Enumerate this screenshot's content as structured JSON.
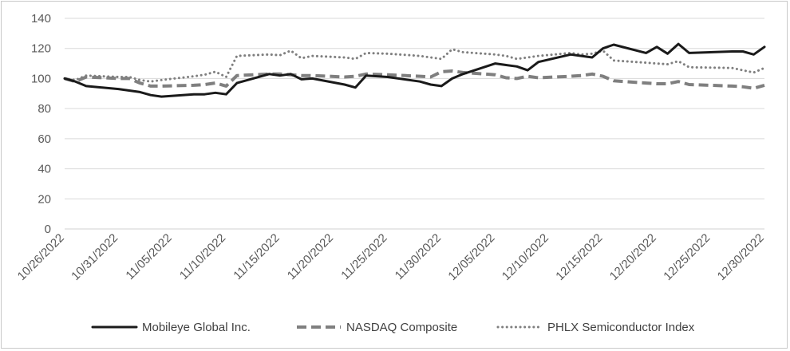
{
  "chart_data": {
    "type": "line",
    "title": "",
    "xlabel": "",
    "ylabel": "",
    "ylim": [
      0,
      140
    ],
    "yticks": [
      0,
      20,
      40,
      60,
      80,
      100,
      120,
      140
    ],
    "xtick_labels": [
      "10/26/2022",
      "10/31/2022",
      "11/05/2022",
      "11/10/2022",
      "11/15/2022",
      "11/20/2022",
      "11/25/2022",
      "11/30/2022",
      "12/05/2022",
      "12/10/2022",
      "12/15/2022",
      "12/20/2022",
      "12/25/2022",
      "12/30/2022"
    ],
    "grid": "horizontal",
    "legend_position": "bottom",
    "series": [
      {
        "name": "Mobileye Global Inc.",
        "style": "solid",
        "color": "#1a1a1a",
        "points": [
          [
            "10/26/2022",
            100
          ],
          [
            "10/27/2022",
            98
          ],
          [
            "10/28/2022",
            95
          ],
          [
            "10/31/2022",
            93
          ],
          [
            "11/01/2022",
            92
          ],
          [
            "11/02/2022",
            91
          ],
          [
            "11/03/2022",
            89
          ],
          [
            "11/04/2022",
            88
          ],
          [
            "11/07/2022",
            89.5
          ],
          [
            "11/08/2022",
            89.5
          ],
          [
            "11/09/2022",
            90.5
          ],
          [
            "11/10/2022",
            89.5
          ],
          [
            "11/11/2022",
            97
          ],
          [
            "11/14/2022",
            103
          ],
          [
            "11/15/2022",
            102
          ],
          [
            "11/16/2022",
            103
          ],
          [
            "11/17/2022",
            99.5
          ],
          [
            "11/18/2022",
            100
          ],
          [
            "11/21/2022",
            96
          ],
          [
            "11/22/2022",
            94
          ],
          [
            "11/23/2022",
            102
          ],
          [
            "11/25/2022",
            101
          ],
          [
            "11/28/2022",
            98
          ],
          [
            "11/29/2022",
            96
          ],
          [
            "11/30/2022",
            95
          ],
          [
            "12/01/2022",
            100
          ],
          [
            "12/02/2022",
            103
          ],
          [
            "12/05/2022",
            110
          ],
          [
            "12/06/2022",
            109
          ],
          [
            "12/07/2022",
            108
          ],
          [
            "12/08/2022",
            105.5
          ],
          [
            "12/09/2022",
            111
          ],
          [
            "12/12/2022",
            116
          ],
          [
            "12/13/2022",
            115
          ],
          [
            "12/14/2022",
            114
          ],
          [
            "12/15/2022",
            120
          ],
          [
            "12/16/2022",
            122.5
          ],
          [
            "12/19/2022",
            117
          ],
          [
            "12/20/2022",
            121
          ],
          [
            "12/21/2022",
            116.5
          ],
          [
            "12/22/2022",
            123
          ],
          [
            "12/23/2022",
            117
          ],
          [
            "12/27/2022",
            118
          ],
          [
            "12/28/2022",
            118
          ],
          [
            "12/29/2022",
            116
          ],
          [
            "12/30/2022",
            121
          ]
        ]
      },
      {
        "name": "NASDAQ Composite",
        "style": "dashed",
        "color": "#7f7f7f",
        "points": [
          [
            "10/26/2022",
            100
          ],
          [
            "10/27/2022",
            98
          ],
          [
            "10/28/2022",
            101
          ],
          [
            "10/31/2022",
            100
          ],
          [
            "11/01/2022",
            100
          ],
          [
            "11/02/2022",
            97
          ],
          [
            "11/03/2022",
            95
          ],
          [
            "11/04/2022",
            95
          ],
          [
            "11/07/2022",
            95.5
          ],
          [
            "11/08/2022",
            96
          ],
          [
            "11/09/2022",
            97
          ],
          [
            "11/10/2022",
            95
          ],
          [
            "11/11/2022",
            102
          ],
          [
            "11/14/2022",
            103
          ],
          [
            "11/15/2022",
            103
          ],
          [
            "11/16/2022",
            102.5
          ],
          [
            "11/17/2022",
            102
          ],
          [
            "11/18/2022",
            102
          ],
          [
            "11/21/2022",
            101
          ],
          [
            "11/22/2022",
            101.5
          ],
          [
            "11/23/2022",
            103
          ],
          [
            "11/25/2022",
            102.5
          ],
          [
            "11/28/2022",
            101.5
          ],
          [
            "11/29/2022",
            101
          ],
          [
            "11/30/2022",
            104.5
          ],
          [
            "12/01/2022",
            105
          ],
          [
            "12/02/2022",
            104
          ],
          [
            "12/05/2022",
            102.5
          ],
          [
            "12/06/2022",
            100.5
          ],
          [
            "12/07/2022",
            100
          ],
          [
            "12/08/2022",
            101.5
          ],
          [
            "12/09/2022",
            100.5
          ],
          [
            "12/12/2022",
            101.5
          ],
          [
            "12/13/2022",
            102
          ],
          [
            "12/14/2022",
            103
          ],
          [
            "12/15/2022",
            101.5
          ],
          [
            "12/16/2022",
            98.5
          ],
          [
            "12/19/2022",
            97
          ],
          [
            "12/20/2022",
            96.5
          ],
          [
            "12/21/2022",
            96.5
          ],
          [
            "12/22/2022",
            98
          ],
          [
            "12/23/2022",
            96
          ],
          [
            "12/27/2022",
            95
          ],
          [
            "12/28/2022",
            94.5
          ],
          [
            "12/29/2022",
            93.5
          ],
          [
            "12/30/2022",
            95.5
          ]
        ]
      },
      {
        "name": "PHLX Semiconductor Index",
        "style": "dotted",
        "color": "#7f7f7f",
        "points": [
          [
            "10/26/2022",
            100
          ],
          [
            "10/27/2022",
            99
          ],
          [
            "10/28/2022",
            102
          ],
          [
            "10/31/2022",
            101
          ],
          [
            "11/01/2022",
            101
          ],
          [
            "11/02/2022",
            99
          ],
          [
            "11/03/2022",
            98
          ],
          [
            "11/04/2022",
            99
          ],
          [
            "11/07/2022",
            101.5
          ],
          [
            "11/08/2022",
            102.5
          ],
          [
            "11/09/2022",
            104.5
          ],
          [
            "11/10/2022",
            101
          ],
          [
            "11/11/2022",
            115
          ],
          [
            "11/14/2022",
            116
          ],
          [
            "11/15/2022",
            115.5
          ],
          [
            "11/16/2022",
            118.5
          ],
          [
            "11/17/2022",
            113.5
          ],
          [
            "11/18/2022",
            115
          ],
          [
            "11/21/2022",
            114
          ],
          [
            "11/22/2022",
            113
          ],
          [
            "11/23/2022",
            117
          ],
          [
            "11/25/2022",
            116.5
          ],
          [
            "11/28/2022",
            115
          ],
          [
            "11/29/2022",
            114
          ],
          [
            "11/30/2022",
            113
          ],
          [
            "12/01/2022",
            119.5
          ],
          [
            "12/02/2022",
            117.5
          ],
          [
            "12/05/2022",
            116
          ],
          [
            "12/06/2022",
            115
          ],
          [
            "12/07/2022",
            113
          ],
          [
            "12/08/2022",
            114
          ],
          [
            "12/09/2022",
            115
          ],
          [
            "12/12/2022",
            117
          ],
          [
            "12/13/2022",
            116
          ],
          [
            "12/14/2022",
            116.5
          ],
          [
            "12/15/2022",
            118.5
          ],
          [
            "12/16/2022",
            112
          ],
          [
            "12/19/2022",
            110.5
          ],
          [
            "12/20/2022",
            110
          ],
          [
            "12/21/2022",
            109.5
          ],
          [
            "12/22/2022",
            111.5
          ],
          [
            "12/23/2022",
            107.5
          ],
          [
            "12/27/2022",
            107
          ],
          [
            "12/28/2022",
            105.5
          ],
          [
            "12/29/2022",
            104
          ],
          [
            "12/30/2022",
            107
          ]
        ]
      }
    ]
  }
}
